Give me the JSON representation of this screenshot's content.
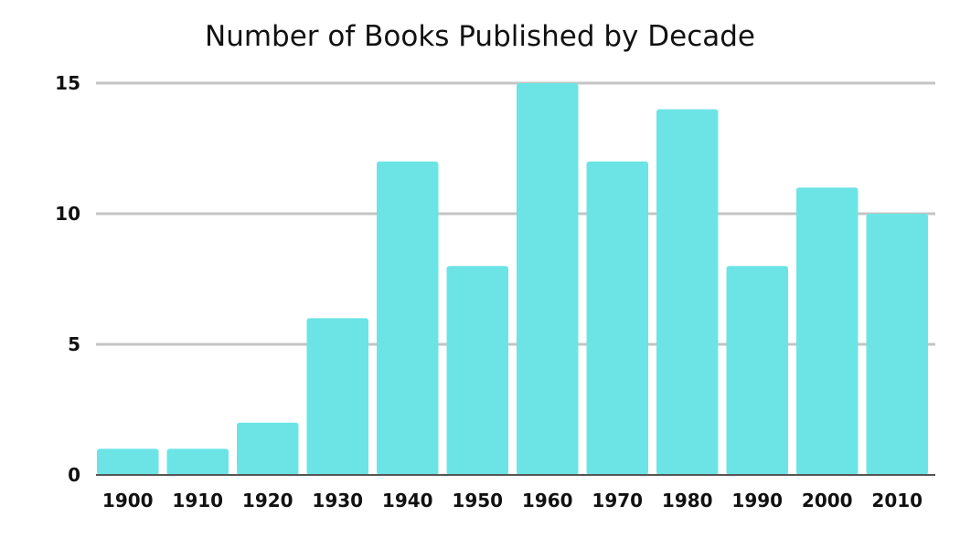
{
  "chart_data": {
    "type": "bar",
    "title": "Number of Books Published by Decade",
    "xlabel": "",
    "ylabel": "",
    "categories": [
      "1900",
      "1910",
      "1920",
      "1930",
      "1940",
      "1950",
      "1960",
      "1970",
      "1980",
      "1990",
      "2000",
      "2010"
    ],
    "values": [
      1,
      1,
      2,
      6,
      12,
      8,
      15,
      12,
      14,
      8,
      11,
      10
    ],
    "ylim": [
      0,
      15
    ],
    "yticks": [
      0,
      5,
      10,
      15
    ],
    "grid": true,
    "legend": "none",
    "colors": {
      "bar": "#6ce4e6",
      "grid": "#c4c4c4",
      "axis": "#555555",
      "text": "#111111"
    }
  }
}
